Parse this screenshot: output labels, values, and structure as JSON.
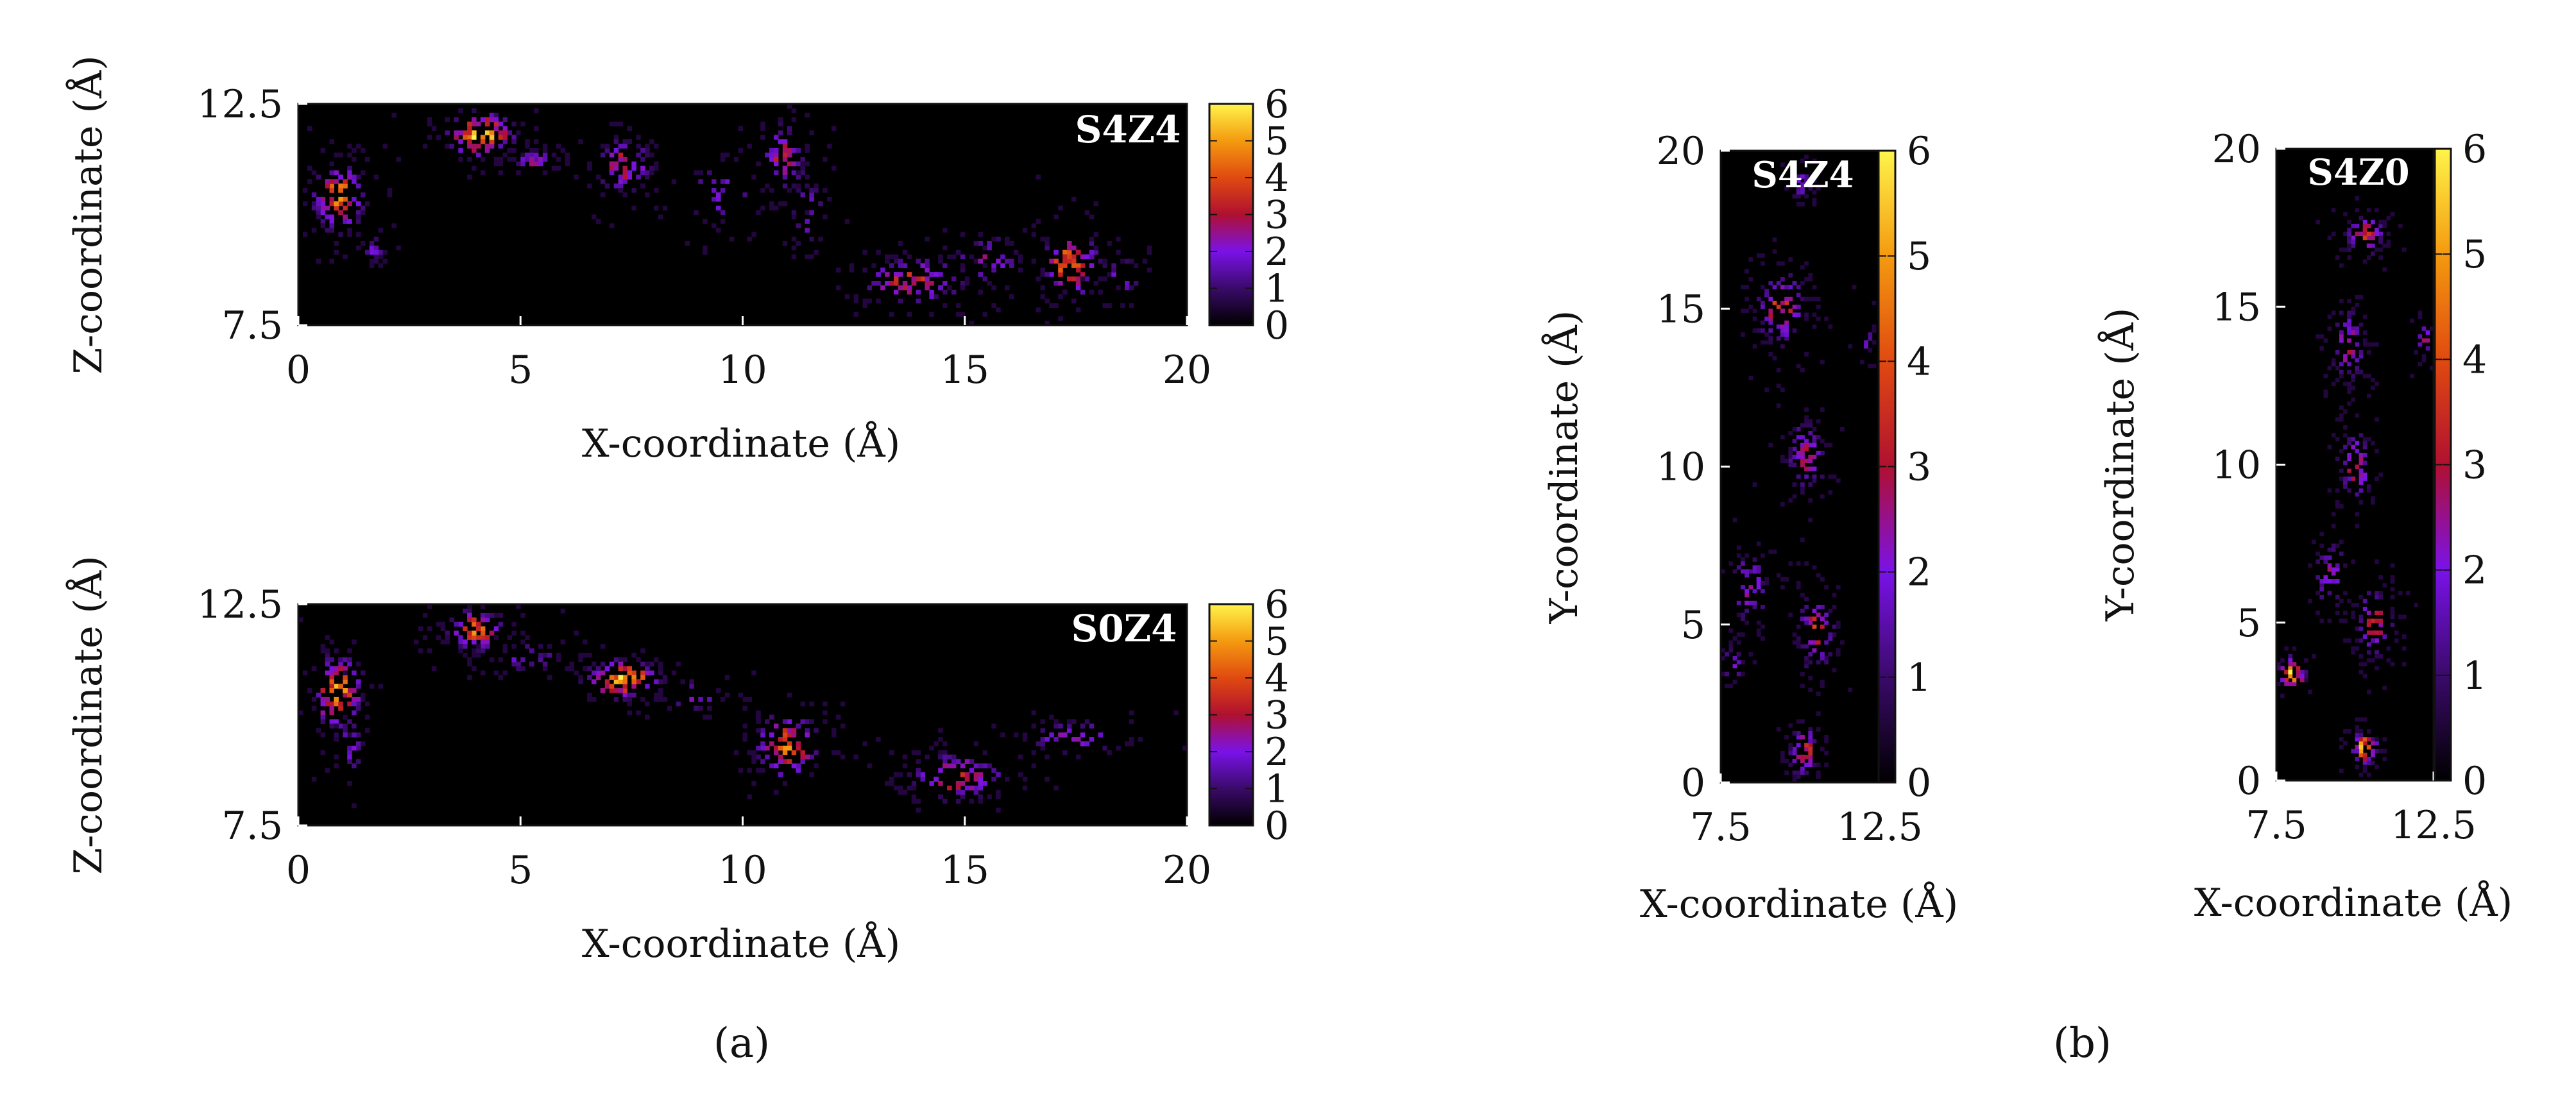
{
  "colors": {
    "background": "#000000",
    "palette": [
      "#000000",
      "#3a0a6a",
      "#7a12e8",
      "#b01030",
      "#e04a10",
      "#f49a10",
      "#fff44a"
    ]
  },
  "captions": {
    "a": "(a)",
    "b": "(b)"
  },
  "chart_data": [
    {
      "type": "heatmap",
      "title": "S4Z4",
      "xlabel": "X-coordinate (Å)",
      "ylabel": "Z-coordinate (Å)",
      "xlim": [
        0,
        20
      ],
      "ylim": [
        7.5,
        12.5
      ],
      "xticks": [
        "0",
        "5",
        "10",
        "15",
        "20"
      ],
      "yticks": [
        "7.5",
        "12.5"
      ],
      "colorbar": {
        "range": [
          0,
          6
        ],
        "ticks": [
          "0",
          "1",
          "2",
          "3",
          "4",
          "5",
          "6"
        ]
      },
      "clusters": [
        {
          "x": 0.9,
          "y": 10.4,
          "sx": 0.45,
          "sy": 0.6,
          "n": 120,
          "peak": 4.5
        },
        {
          "x": 1.7,
          "y": 9.2,
          "sx": 0.2,
          "sy": 0.25,
          "n": 20,
          "peak": 2
        },
        {
          "x": 4.1,
          "y": 11.8,
          "sx": 0.55,
          "sy": 0.35,
          "n": 110,
          "peak": 6
        },
        {
          "x": 5.3,
          "y": 11.2,
          "sx": 0.4,
          "sy": 0.2,
          "n": 40,
          "peak": 2.5
        },
        {
          "x": 7.3,
          "y": 11.1,
          "sx": 0.5,
          "sy": 0.45,
          "n": 90,
          "peak": 3.5
        },
        {
          "x": 9.5,
          "y": 10.5,
          "sx": 0.7,
          "sy": 0.6,
          "n": 45,
          "peak": 2
        },
        {
          "x": 10.9,
          "y": 11.3,
          "sx": 0.45,
          "sy": 0.6,
          "n": 70,
          "peak": 3
        },
        {
          "x": 11.5,
          "y": 10.0,
          "sx": 0.3,
          "sy": 0.7,
          "n": 35,
          "peak": 2
        },
        {
          "x": 13.8,
          "y": 8.5,
          "sx": 0.9,
          "sy": 0.4,
          "n": 120,
          "peak": 3.5
        },
        {
          "x": 15.5,
          "y": 9.0,
          "sx": 0.6,
          "sy": 0.4,
          "n": 50,
          "peak": 2.5
        },
        {
          "x": 17.4,
          "y": 8.9,
          "sx": 0.5,
          "sy": 0.55,
          "n": 95,
          "peak": 4.5
        },
        {
          "x": 18.5,
          "y": 8.6,
          "sx": 0.4,
          "sy": 0.4,
          "n": 25,
          "peak": 2
        }
      ]
    },
    {
      "type": "heatmap",
      "title": "S0Z4",
      "xlabel": "X-coordinate (Å)",
      "ylabel": "Z-coordinate (Å)",
      "xlim": [
        0,
        20
      ],
      "ylim": [
        7.5,
        12.5
      ],
      "xticks": [
        "0",
        "5",
        "10",
        "15",
        "20"
      ],
      "yticks": [
        "7.5",
        "12.5"
      ],
      "colorbar": {
        "range": [
          0,
          6
        ],
        "ticks": [
          "0",
          "1",
          "2",
          "3",
          "4",
          "5",
          "6"
        ]
      },
      "clusters": [
        {
          "x": 0.9,
          "y": 10.5,
          "sx": 0.4,
          "sy": 0.65,
          "n": 110,
          "peak": 5
        },
        {
          "x": 1.2,
          "y": 9.3,
          "sx": 0.25,
          "sy": 0.6,
          "n": 25,
          "peak": 2
        },
        {
          "x": 4.0,
          "y": 11.9,
          "sx": 0.5,
          "sy": 0.35,
          "n": 100,
          "peak": 4.5
        },
        {
          "x": 5.2,
          "y": 11.3,
          "sx": 0.55,
          "sy": 0.3,
          "n": 40,
          "peak": 2
        },
        {
          "x": 7.3,
          "y": 10.8,
          "sx": 0.6,
          "sy": 0.3,
          "n": 110,
          "peak": 6
        },
        {
          "x": 9.0,
          "y": 10.4,
          "sx": 0.5,
          "sy": 0.3,
          "n": 25,
          "peak": 2
        },
        {
          "x": 11.0,
          "y": 9.3,
          "sx": 0.55,
          "sy": 0.55,
          "n": 110,
          "peak": 4.5
        },
        {
          "x": 14.8,
          "y": 8.6,
          "sx": 0.85,
          "sy": 0.4,
          "n": 120,
          "peak": 3.5
        },
        {
          "x": 17.5,
          "y": 9.5,
          "sx": 0.9,
          "sy": 0.3,
          "n": 60,
          "peak": 2.5
        }
      ]
    },
    {
      "type": "heatmap",
      "title": "S4Z4",
      "xlabel": "X-coordinate (Å)",
      "ylabel": "Y-coordinate (Å)",
      "xlim": [
        7.5,
        12.5
      ],
      "ylim": [
        0,
        20
      ],
      "xticks": [
        "7.5",
        "12.5"
      ],
      "yticks": [
        "0",
        "5",
        "10",
        "15",
        "20"
      ],
      "colorbar": {
        "range": [
          0,
          6
        ],
        "ticks": [
          "0",
          "1",
          "2",
          "3",
          "4",
          "5",
          "6"
        ]
      },
      "clusters": [
        {
          "x": 10.0,
          "y": 19.0,
          "sx": 0.3,
          "sy": 0.5,
          "n": 35,
          "peak": 2
        },
        {
          "x": 9.4,
          "y": 15.0,
          "sx": 0.6,
          "sy": 0.9,
          "n": 120,
          "peak": 3.5
        },
        {
          "x": 12.1,
          "y": 14.0,
          "sx": 0.25,
          "sy": 0.4,
          "n": 15,
          "peak": 2
        },
        {
          "x": 10.2,
          "y": 10.3,
          "sx": 0.45,
          "sy": 0.9,
          "n": 95,
          "peak": 3
        },
        {
          "x": 8.4,
          "y": 6.2,
          "sx": 0.5,
          "sy": 0.9,
          "n": 70,
          "peak": 2.5
        },
        {
          "x": 10.5,
          "y": 4.8,
          "sx": 0.45,
          "sy": 0.9,
          "n": 85,
          "peak": 3.5
        },
        {
          "x": 7.9,
          "y": 3.8,
          "sx": 0.3,
          "sy": 0.5,
          "n": 25,
          "peak": 2
        },
        {
          "x": 10.1,
          "y": 1.0,
          "sx": 0.35,
          "sy": 0.7,
          "n": 75,
          "peak": 3.5
        }
      ]
    },
    {
      "type": "heatmap",
      "title": "S4Z0",
      "xlabel": "X-coordinate (Å)",
      "ylabel": "Y-coordinate (Å)",
      "xlim": [
        7.5,
        12.5
      ],
      "ylim": [
        0,
        20
      ],
      "xticks": [
        "7.5",
        "12.5"
      ],
      "yticks": [
        "0",
        "5",
        "10",
        "15",
        "20"
      ],
      "colorbar": {
        "range": [
          0,
          6
        ],
        "ticks": [
          "0",
          "1",
          "2",
          "3",
          "4",
          "5",
          "6"
        ]
      },
      "clusters": [
        {
          "x": 10.3,
          "y": 17.3,
          "sx": 0.5,
          "sy": 0.45,
          "n": 80,
          "peak": 3.5
        },
        {
          "x": 9.8,
          "y": 13.8,
          "sx": 0.4,
          "sy": 0.9,
          "n": 90,
          "peak": 3
        },
        {
          "x": 12.2,
          "y": 14.0,
          "sx": 0.25,
          "sy": 0.5,
          "n": 20,
          "peak": 2.5
        },
        {
          "x": 10.0,
          "y": 10.0,
          "sx": 0.4,
          "sy": 0.9,
          "n": 85,
          "peak": 3
        },
        {
          "x": 9.2,
          "y": 6.5,
          "sx": 0.4,
          "sy": 0.8,
          "n": 50,
          "peak": 2.5
        },
        {
          "x": 10.6,
          "y": 5.0,
          "sx": 0.45,
          "sy": 0.8,
          "n": 95,
          "peak": 3.5
        },
        {
          "x": 8.0,
          "y": 3.4,
          "sx": 0.3,
          "sy": 0.35,
          "n": 45,
          "peak": 6
        },
        {
          "x": 10.3,
          "y": 1.0,
          "sx": 0.3,
          "sy": 0.35,
          "n": 70,
          "peak": 6
        }
      ]
    }
  ]
}
